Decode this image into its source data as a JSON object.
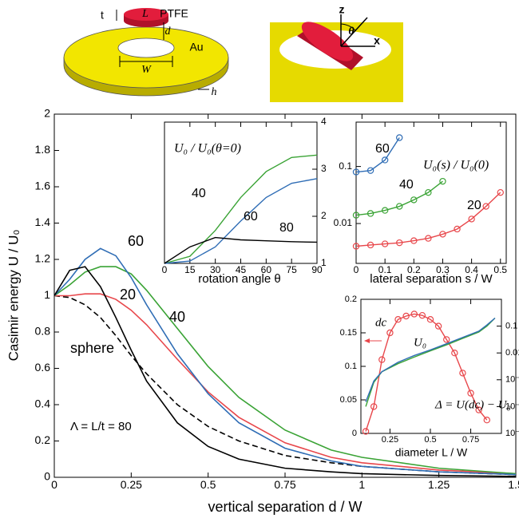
{
  "diagram": {
    "labels": [
      "t",
      "L",
      "PTFE",
      "d",
      "Au",
      "W",
      "h",
      "z",
      "θ",
      "x"
    ]
  },
  "chart_data": [
    {
      "type": "line",
      "xlabel": "vertical separation d / W",
      "ylabel": "Casimir energy U / U₀",
      "annotation": "Λ = L/t = 80",
      "x": [
        0,
        0.05,
        0.1,
        0.15,
        0.2,
        0.25,
        0.3,
        0.4,
        0.5,
        0.6,
        0.75,
        0.9,
        1.0,
        1.25,
        1.5
      ],
      "xlim": [
        0,
        1.5
      ],
      "xticks": [
        0,
        0.25,
        0.5,
        0.75,
        1,
        1.25,
        1.5
      ],
      "ylim": [
        0,
        2
      ],
      "yticks": [
        0,
        0.2,
        0.4,
        0.6,
        0.8,
        1,
        1.2,
        1.4,
        1.6,
        1.8,
        2
      ],
      "series": [
        {
          "name": "sphere",
          "color": "#000000",
          "dash": true,
          "values": [
            1,
            0.99,
            0.95,
            0.88,
            0.78,
            0.67,
            0.57,
            0.4,
            0.28,
            0.2,
            0.12,
            0.08,
            0.06,
            0.03,
            0.015
          ]
        },
        {
          "name": "20",
          "color": "#e8474b",
          "values": [
            1,
            1.0,
            1.01,
            1.01,
            0.98,
            0.92,
            0.84,
            0.65,
            0.47,
            0.33,
            0.19,
            0.11,
            0.08,
            0.04,
            0.02
          ]
        },
        {
          "name": "40",
          "color": "#3aa335",
          "values": [
            1,
            1.06,
            1.13,
            1.16,
            1.16,
            1.12,
            1.03,
            0.82,
            0.61,
            0.44,
            0.26,
            0.15,
            0.11,
            0.05,
            0.02
          ]
        },
        {
          "name": "60",
          "color": "#2f6db5",
          "values": [
            1,
            1.09,
            1.2,
            1.26,
            1.22,
            1.1,
            0.95,
            0.68,
            0.46,
            0.3,
            0.16,
            0.09,
            0.06,
            0.03,
            0.015
          ]
        },
        {
          "color": "#000000",
          "values": [
            1,
            1.14,
            1.16,
            1.05,
            0.88,
            0.7,
            0.53,
            0.3,
            0.17,
            0.1,
            0.05,
            0.03,
            0.02,
            0.01,
            0.005
          ]
        }
      ]
    },
    {
      "type": "line",
      "title": "U₀ / U₀(θ=0)",
      "xlabel": "rotation angle θ",
      "x": [
        0,
        15,
        30,
        45,
        60,
        75,
        90
      ],
      "xlim": [
        0,
        90
      ],
      "xticks": [
        0,
        15,
        30,
        45,
        60,
        75,
        90
      ],
      "ylim": [
        1,
        4
      ],
      "yticks": [
        1,
        2,
        3,
        4
      ],
      "series": [
        {
          "name": "40",
          "color": "#3aa335",
          "values": [
            1,
            1.15,
            1.7,
            2.4,
            2.95,
            3.25,
            3.3
          ]
        },
        {
          "name": "60",
          "color": "#2f6db5",
          "values": [
            1,
            1.05,
            1.35,
            1.9,
            2.4,
            2.7,
            2.8
          ]
        },
        {
          "name": "80",
          "color": "#000000",
          "values": [
            1,
            1.35,
            1.55,
            1.5,
            1.48,
            1.46,
            1.45
          ]
        }
      ]
    },
    {
      "type": "line",
      "title": "U₀(s) / U₀(0)",
      "xlabel": "lateral separation s / W",
      "log_y": true,
      "xlim": [
        0,
        0.52
      ],
      "xticks": [
        0,
        0.1,
        0.2,
        0.3,
        0.4,
        0.5
      ],
      "ylim": [
        0.002,
        0.6
      ],
      "yticks": [
        0.01,
        0.1
      ],
      "series": [
        {
          "name": "60",
          "color": "#2f6db5",
          "marker": true,
          "x": [
            0,
            0.05,
            0.1,
            0.15
          ],
          "values": [
            0.08,
            0.085,
            0.13,
            0.32
          ]
        },
        {
          "name": "40",
          "color": "#3aa335",
          "marker": true,
          "x": [
            0,
            0.05,
            0.1,
            0.15,
            0.2,
            0.25,
            0.3
          ],
          "values": [
            0.014,
            0.015,
            0.017,
            0.02,
            0.026,
            0.035,
            0.055
          ]
        },
        {
          "name": "20",
          "color": "#e8474b",
          "marker": true,
          "x": [
            0,
            0.05,
            0.1,
            0.15,
            0.2,
            0.25,
            0.3,
            0.35,
            0.4,
            0.45,
            0.5
          ],
          "values": [
            0.004,
            0.0042,
            0.0044,
            0.0046,
            0.005,
            0.0055,
            0.0065,
            0.008,
            0.012,
            0.02,
            0.035
          ]
        }
      ]
    },
    {
      "type": "line",
      "xlabel": "diameter L / W",
      "log_y2": true,
      "xlim": [
        0.07,
        0.94
      ],
      "xticks": [
        0.25,
        0.5,
        0.75
      ],
      "ylim": [
        0,
        0.2
      ],
      "yticks": [
        0,
        0.05,
        0.1,
        0.15,
        0.2
      ],
      "y2lim": [
        1e-05,
        1
      ],
      "y2ticks": [
        0.1,
        0.01,
        {
          "value": 0.001,
          "label": "10⁻³"
        },
        {
          "value": 0.0001,
          "label": "10⁻⁴"
        },
        {
          "value": 1e-05,
          "label": "10⁻⁵"
        }
      ],
      "series": [
        {
          "name": "dc",
          "color": "#e8474b",
          "marker": true,
          "x": [
            0.1,
            0.15,
            0.2,
            0.25,
            0.3,
            0.35,
            0.4,
            0.45,
            0.5,
            0.55,
            0.6,
            0.65,
            0.7,
            0.75,
            0.8,
            0.85
          ],
          "values": [
            0.003,
            0.04,
            0.11,
            0.15,
            0.17,
            0.175,
            0.178,
            0.176,
            0.17,
            0.16,
            0.14,
            0.12,
            0.09,
            0.06,
            0.035,
            0.02
          ]
        },
        {
          "name": "U₀",
          "color": "#3aa335",
          "axis": "y2",
          "x": [
            0.1,
            0.15,
            0.2,
            0.3,
            0.4,
            0.5,
            0.6,
            0.7,
            0.8,
            0.85,
            0.9
          ],
          "values": [
            0.0001,
            0.0008,
            0.002,
            0.004,
            0.007,
            0.012,
            0.02,
            0.035,
            0.06,
            0.1,
            0.2
          ]
        },
        {
          "name": "Δ = U(dc) − U₀",
          "color": "#2f6db5",
          "axis": "y2",
          "x": [
            0.1,
            0.15,
            0.2,
            0.3,
            0.4,
            0.5,
            0.6,
            0.7,
            0.8,
            0.85,
            0.9
          ],
          "values": [
            0.00015,
            0.0009,
            0.002,
            0.0045,
            0.008,
            0.013,
            0.022,
            0.038,
            0.065,
            0.11,
            0.2
          ]
        }
      ]
    }
  ]
}
